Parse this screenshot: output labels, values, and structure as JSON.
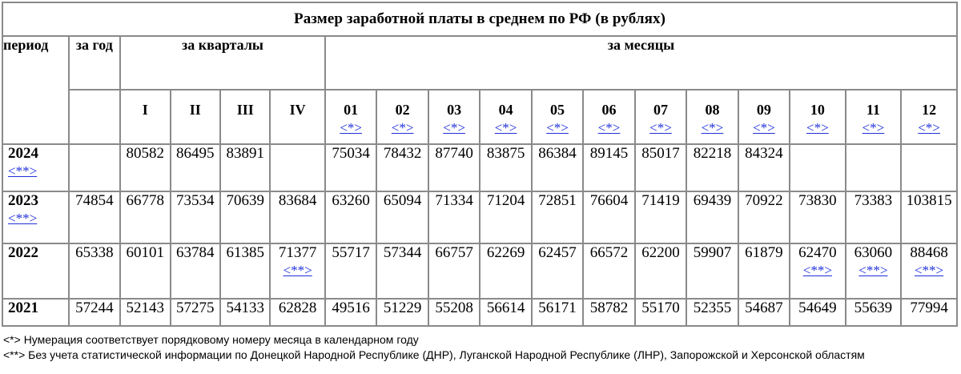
{
  "title": "Размер заработной платы в среднем по РФ (в рублях)",
  "headers": {
    "period": "период",
    "year_total": "за год",
    "quarters": "за кварталы",
    "months": "за месяцы",
    "quarter_labels": [
      "I",
      "II",
      "III",
      "IV"
    ],
    "month_labels": [
      "01",
      "02",
      "03",
      "04",
      "05",
      "06",
      "07",
      "08",
      "09",
      "10",
      "11",
      "12"
    ],
    "month_note_link": "<*>"
  },
  "rows": [
    {
      "year": "2024",
      "year_note": "<**>",
      "annual": "",
      "quarters": [
        "80582",
        "86495",
        "83891",
        ""
      ],
      "months": [
        "75034",
        "78432",
        "87740",
        "83875",
        "86384",
        "89145",
        "85017",
        "82218",
        "84324",
        "",
        "",
        ""
      ]
    },
    {
      "year": "2023",
      "year_note": "<**>",
      "annual": "74854",
      "quarters": [
        "66778",
        "73534",
        "70639",
        "83684"
      ],
      "months": [
        "63260",
        "65094",
        "71334",
        "71204",
        "72851",
        "76604",
        "71419",
        "69439",
        "70922",
        "73830",
        "73383",
        "103815"
      ]
    },
    {
      "year": "2022",
      "year_note": "",
      "annual": "65338",
      "quarters": [
        "60101",
        "63784",
        "61385",
        "71377"
      ],
      "quarter4_note": "<**>",
      "months": [
        "55717",
        "57344",
        "66757",
        "62269",
        "62457",
        "66572",
        "62200",
        "59907",
        "61879",
        "62470",
        "63060",
        "88468"
      ],
      "month_notes": {
        "10": "<**>",
        "11": "<**>",
        "12": "<**>"
      }
    },
    {
      "year": "2021",
      "year_note": "",
      "annual": "57244",
      "quarters": [
        "52143",
        "57275",
        "54133",
        "62828"
      ],
      "months": [
        "49516",
        "51229",
        "55208",
        "56614",
        "56171",
        "58782",
        "55170",
        "52355",
        "54687",
        "54649",
        "55639",
        "77994"
      ]
    }
  ],
  "footnotes": [
    "<*> Нумерация соответствует порядковому номеру месяца в календарном году",
    "<**> Без учета статистической информации по Донецкой Народной Республике (ДНР), Луганской Народной Республике (ЛНР), Запорожской и Херсонской областям"
  ],
  "colors": {
    "link": "#1f2fd8",
    "border": "#8a8a8a"
  }
}
